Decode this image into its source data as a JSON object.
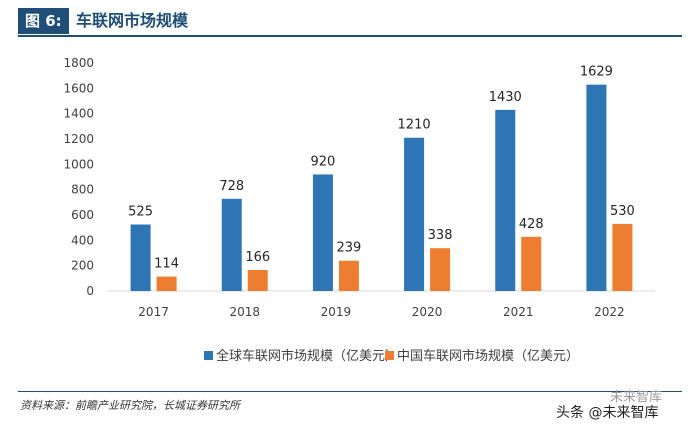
{
  "header": {
    "figure_label": "图 6:",
    "title": "车联网市场规模"
  },
  "chart_data": {
    "type": "bar",
    "categories": [
      "2017",
      "2018",
      "2019",
      "2020",
      "2021",
      "2022"
    ],
    "series": [
      {
        "name": "全球车联网市场规模（亿美元）",
        "color": "#2e75b6",
        "values": [
          525,
          728,
          920,
          1210,
          1430,
          1629
        ]
      },
      {
        "name": "中国车联网市场规模（亿美元）",
        "color": "#ed7d31",
        "values": [
          114,
          166,
          239,
          338,
          428,
          530
        ]
      }
    ],
    "y_ticks": [
      "0",
      "200",
      "400",
      "600",
      "800",
      "1000",
      "1200",
      "1400",
      "1600",
      "1800"
    ],
    "ylim": [
      0,
      1800
    ],
    "grid": false,
    "legend_position": "bottom"
  },
  "footer": {
    "source": "资料来源：前瞻产业研究院，长城证券研究所"
  },
  "watermark": {
    "top_text": "未来智库",
    "bottom_text": "头条 @未来智库"
  }
}
